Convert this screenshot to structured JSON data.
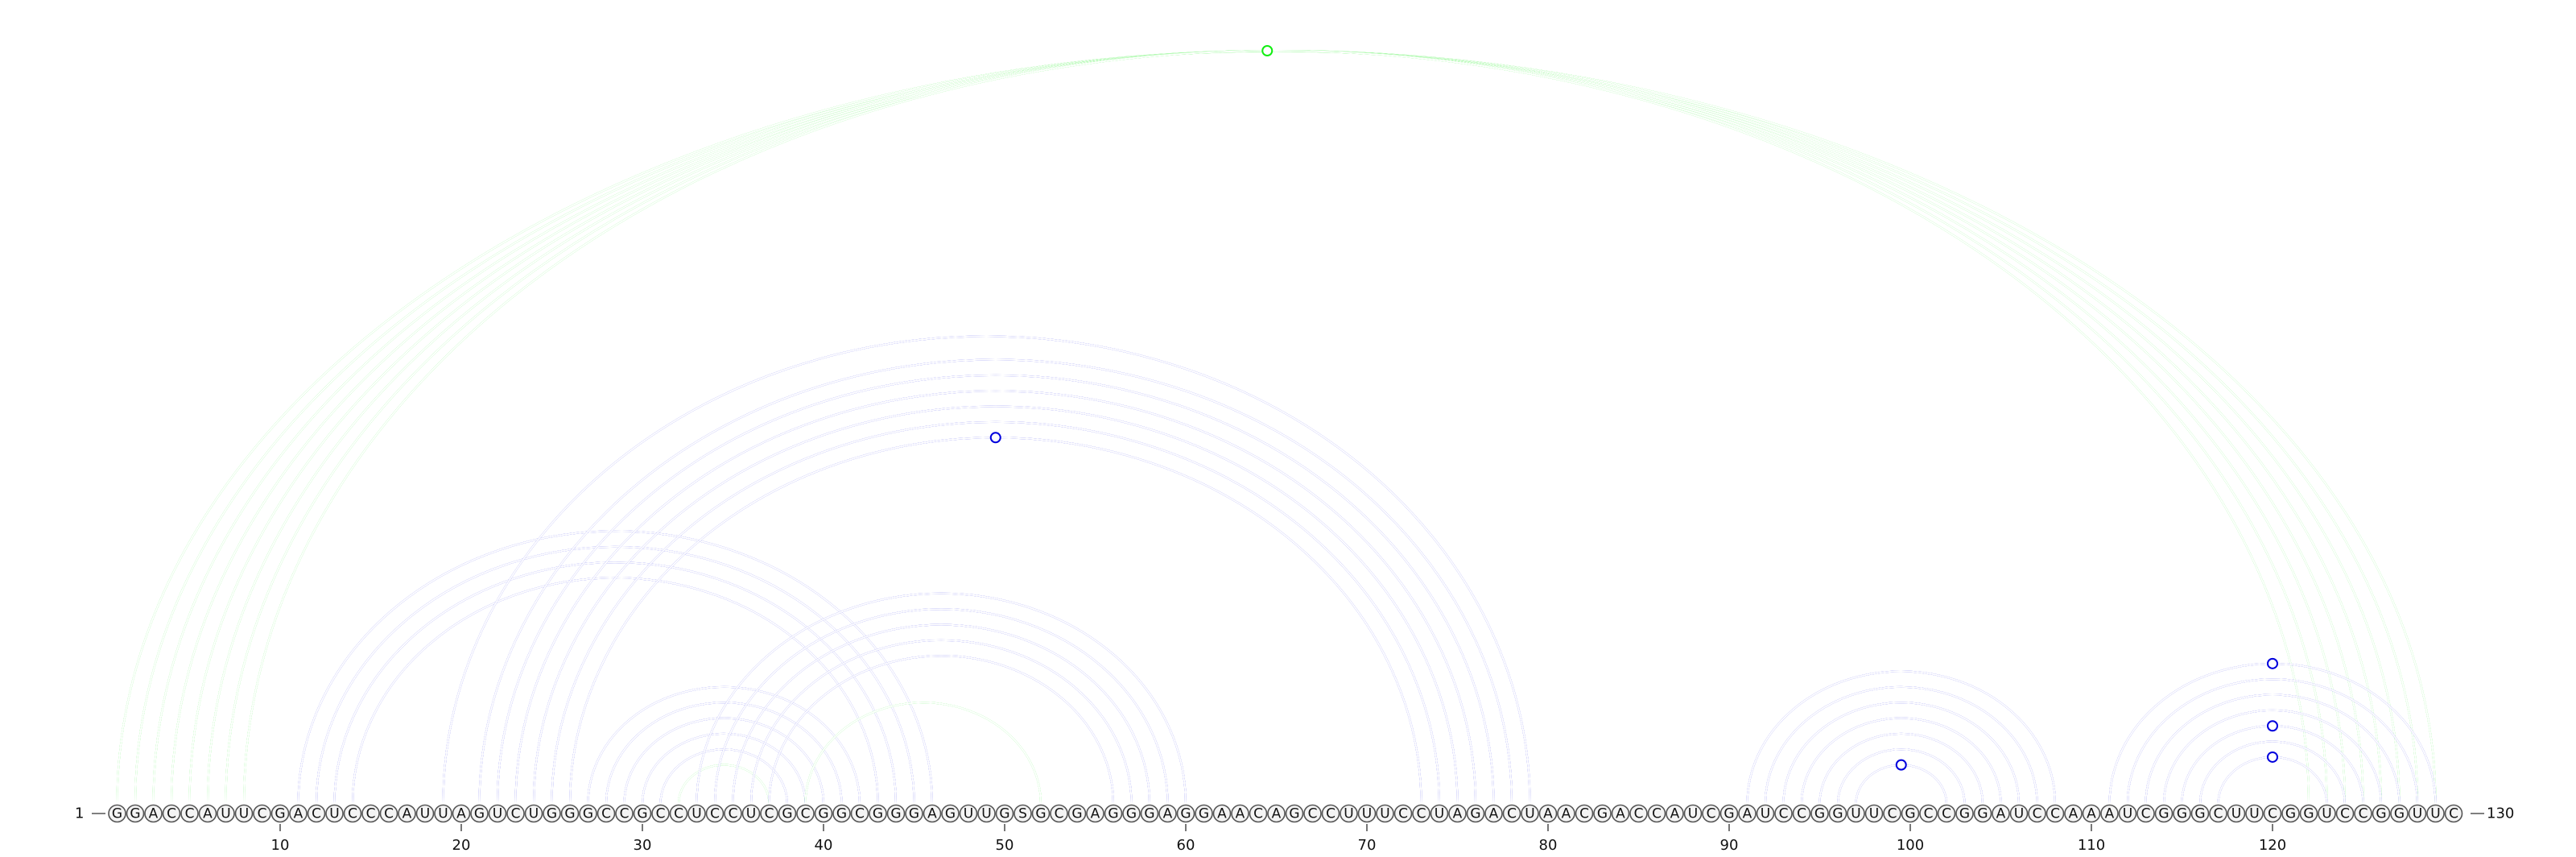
{
  "diagram": {
    "start_label": "1",
    "end_label": "130",
    "sequence": "GGACCAUUCGACUCCCAUUAGUCUGGGCCGCCUCCUCGCGGCGGGAGUUGSGCGAGGGAGGAACAGCCUUUCCUAGACUAACGACCAUCGAUCCGGUUCGCCGGAUCCAAAUCGGGCUUCGGUCCGGUUC",
    "tick_labels": [
      "10",
      "20",
      "30",
      "40",
      "50",
      "60",
      "70",
      "80",
      "90",
      "100",
      "110",
      "120"
    ],
    "colors": {
      "blue_arc": "#0000dd",
      "green_arc": "#11ee11"
    },
    "arc_groups": [
      {
        "color": "green",
        "pairs": [
          [
            1,
            129
          ],
          [
            2,
            128
          ],
          [
            3,
            127
          ],
          [
            4,
            126
          ],
          [
            5,
            125
          ]
        ]
      },
      {
        "color": "green",
        "pairs": [
          [
            6,
            124
          ],
          [
            7,
            123
          ],
          [
            8,
            122
          ]
        ]
      },
      {
        "color": "blue",
        "pairs": [
          [
            11,
            46
          ],
          [
            12,
            45
          ],
          [
            13,
            44
          ],
          [
            14,
            43
          ]
        ]
      },
      {
        "color": "blue",
        "pairs": [
          [
            19,
            79
          ],
          [
            21,
            78
          ],
          [
            22,
            77
          ],
          [
            23,
            76
          ],
          [
            24,
            75
          ],
          [
            25,
            74
          ],
          [
            26,
            73
          ]
        ]
      },
      {
        "color": "blue",
        "pairs": [
          [
            27,
            42
          ],
          [
            28,
            41
          ],
          [
            29,
            40
          ],
          [
            30,
            39
          ],
          [
            31,
            38
          ]
        ]
      },
      {
        "color": "green",
        "pairs": [
          [
            32,
            37
          ]
        ]
      },
      {
        "color": "blue",
        "pairs": [
          [
            33,
            60
          ],
          [
            34,
            59
          ],
          [
            35,
            58
          ],
          [
            36,
            57
          ],
          [
            37,
            56
          ]
        ]
      },
      {
        "color": "green",
        "pairs": [
          [
            39,
            52
          ]
        ]
      },
      {
        "color": "blue",
        "pairs": [
          [
            91,
            108
          ],
          [
            92,
            107
          ],
          [
            93,
            106
          ],
          [
            94,
            105
          ],
          [
            95,
            104
          ],
          [
            96,
            103
          ],
          [
            97,
            102
          ]
        ]
      },
      {
        "color": "blue",
        "pairs": [
          [
            111,
            129
          ],
          [
            112,
            128
          ],
          [
            113,
            127
          ],
          [
            114,
            126
          ],
          [
            115,
            125
          ],
          [
            116,
            124
          ],
          [
            117,
            123
          ]
        ]
      }
    ],
    "markers": [
      {
        "i": 5,
        "j": 124,
        "color": "green"
      },
      {
        "i": 26,
        "j": 73,
        "color": "blue"
      },
      {
        "i": 97,
        "j": 102,
        "color": "blue"
      },
      {
        "i": 111,
        "j": 129,
        "color": "blue"
      },
      {
        "i": 115,
        "j": 125,
        "color": "blue"
      },
      {
        "i": 117,
        "j": 123,
        "color": "blue"
      }
    ]
  }
}
